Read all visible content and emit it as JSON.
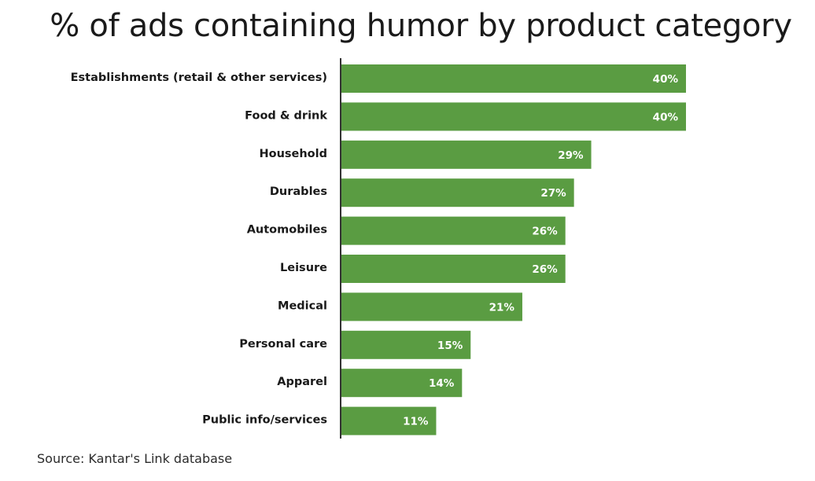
{
  "chart_data": {
    "type": "bar",
    "orientation": "horizontal",
    "title": "% of ads containing humor by product category",
    "categories": [
      "Establishments (retail & other services)",
      "Food & drink",
      "Household",
      "Durables",
      "Automobiles",
      "Leisure",
      "Medical",
      "Personal care",
      "Apparel",
      "Public info/services"
    ],
    "values": [
      40,
      40,
      29,
      27,
      26,
      26,
      21,
      15,
      14,
      11
    ],
    "value_labels": [
      "40%",
      "40%",
      "29%",
      "27%",
      "26%",
      "26%",
      "21%",
      "15%",
      "14%",
      "11%"
    ],
    "xlabel": "",
    "ylabel": "",
    "xlim": [
      0,
      40
    ],
    "grid": false,
    "legend": "none",
    "colors": {
      "bar": "#5a9c42",
      "axis": "#333333",
      "value_text": "#ffffff"
    }
  },
  "source": "Source: Kantar's Link database"
}
